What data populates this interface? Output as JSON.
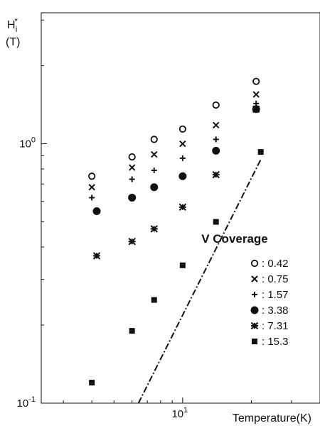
{
  "chart_data": {
    "type": "scatter",
    "x_scale": "log",
    "y_scale": "log",
    "xlim": [
      2.4,
      40
    ],
    "ylim": [
      0.1,
      3.2
    ],
    "xlabel": "Temperature(K)",
    "ylabel": [
      "H",
      "i",
      "*",
      "(T)"
    ],
    "x_tick_labels": [
      {
        "base": "10",
        "exp": "1",
        "value": 10
      }
    ],
    "y_tick_labels": [
      {
        "base": "10",
        "exp": "0",
        "value": 1
      },
      {
        "base": "10",
        "exp": "-1",
        "value": 0.1
      }
    ],
    "legend": {
      "title": "V Coverage",
      "position": "right"
    },
    "series": [
      {
        "name": ": 0.42",
        "marker": "open-circle",
        "x": [
          4,
          6,
          7.5,
          10,
          14,
          21
        ],
        "y": [
          0.75,
          0.89,
          1.04,
          1.14,
          1.41,
          1.74
        ]
      },
      {
        "name": ": 0.75",
        "marker": "cross",
        "x": [
          4,
          6,
          7.5,
          10,
          14,
          21
        ],
        "y": [
          0.68,
          0.81,
          0.91,
          1.0,
          1.18,
          1.55
        ]
      },
      {
        "name": ": 1.57",
        "marker": "plus",
        "x": [
          4,
          6,
          7.5,
          10,
          14,
          21
        ],
        "y": [
          0.62,
          0.73,
          0.79,
          0.88,
          1.04,
          1.43
        ]
      },
      {
        "name": ": 3.38",
        "marker": "filled-circle",
        "x": [
          4.2,
          6,
          7.5,
          10,
          14,
          21
        ],
        "y": [
          0.55,
          0.62,
          0.68,
          0.75,
          0.94,
          1.36
        ]
      },
      {
        "name": ": 7.31",
        "marker": "asterisk",
        "x": [
          4.2,
          6,
          7.5,
          10,
          14,
          21
        ],
        "y": [
          0.37,
          0.42,
          0.47,
          0.57,
          0.76,
          1.36
        ]
      },
      {
        "name": ": 15.3",
        "marker": "filled-square",
        "x": [
          4,
          6,
          7.5,
          10,
          14,
          22
        ],
        "y": [
          0.12,
          0.19,
          0.25,
          0.34,
          0.5,
          0.93
        ]
      }
    ],
    "fit_line": {
      "style": "dash-dot",
      "x": [
        6.4,
        22
      ],
      "y": [
        0.1,
        0.87
      ]
    }
  }
}
